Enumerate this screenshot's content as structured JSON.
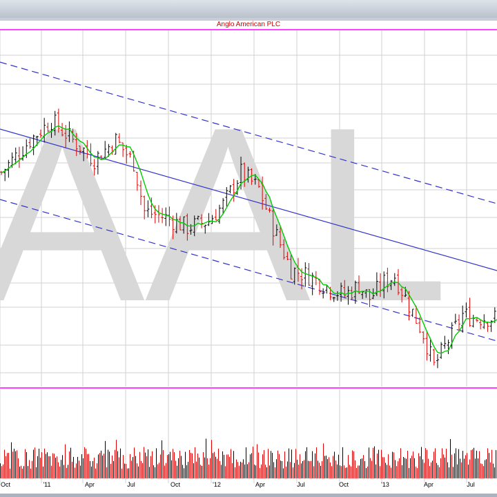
{
  "chart_data": {
    "type": "ohlc",
    "title": "Anglo American PLC",
    "watermark": "AAL",
    "x_tick_labels": [
      "Oct",
      "'11",
      "Apr",
      "Jul",
      "Oct",
      "'12",
      "Apr",
      "Jul",
      "Oct",
      "'13",
      "Apr",
      "Jul"
    ],
    "price_range": [
      0,
      100
    ],
    "moving_average": "green",
    "weekly_prices": [
      {
        "week": 0,
        "close": 62
      },
      {
        "week": 8,
        "close": 72
      },
      {
        "week": 14,
        "close": 78
      },
      {
        "week": 20,
        "close": 72
      },
      {
        "week": 26,
        "close": 66
      },
      {
        "week": 32,
        "close": 72
      },
      {
        "week": 37,
        "close": 65
      },
      {
        "week": 40,
        "close": 50
      },
      {
        "week": 46,
        "close": 48
      },
      {
        "week": 52,
        "close": 45
      },
      {
        "week": 58,
        "close": 47
      },
      {
        "week": 62,
        "close": 52
      },
      {
        "week": 67,
        "close": 62
      },
      {
        "week": 72,
        "close": 57
      },
      {
        "week": 76,
        "close": 45
      },
      {
        "week": 81,
        "close": 32
      },
      {
        "week": 86,
        "close": 30
      },
      {
        "week": 92,
        "close": 26
      },
      {
        "week": 96,
        "close": 24
      },
      {
        "week": 100,
        "close": 27
      },
      {
        "week": 103,
        "close": 23
      },
      {
        "week": 107,
        "close": 28
      },
      {
        "week": 110,
        "close": 30
      },
      {
        "week": 114,
        "close": 21
      },
      {
        "week": 118,
        "close": 12
      },
      {
        "week": 121,
        "close": 2
      },
      {
        "week": 125,
        "close": 10
      },
      {
        "week": 129,
        "close": 18
      },
      {
        "week": 132,
        "close": 17
      }
    ],
    "volume_range": [
      0,
      100
    ],
    "volume_pattern": "weekly bars, red for down weeks and black for up weeks",
    "trend_channel": {
      "style": "solid blue middle line with dashed blue upper and lower bands",
      "direction": "down"
    },
    "colors": {
      "up_bar": "#000000",
      "down_bar": "#e00000",
      "ma_line": "#00cc00",
      "trend_line": "#3333cc",
      "title_line": "#ff00ff",
      "watermark": "#d8d8d8",
      "grid": "#d0d0d0"
    }
  }
}
